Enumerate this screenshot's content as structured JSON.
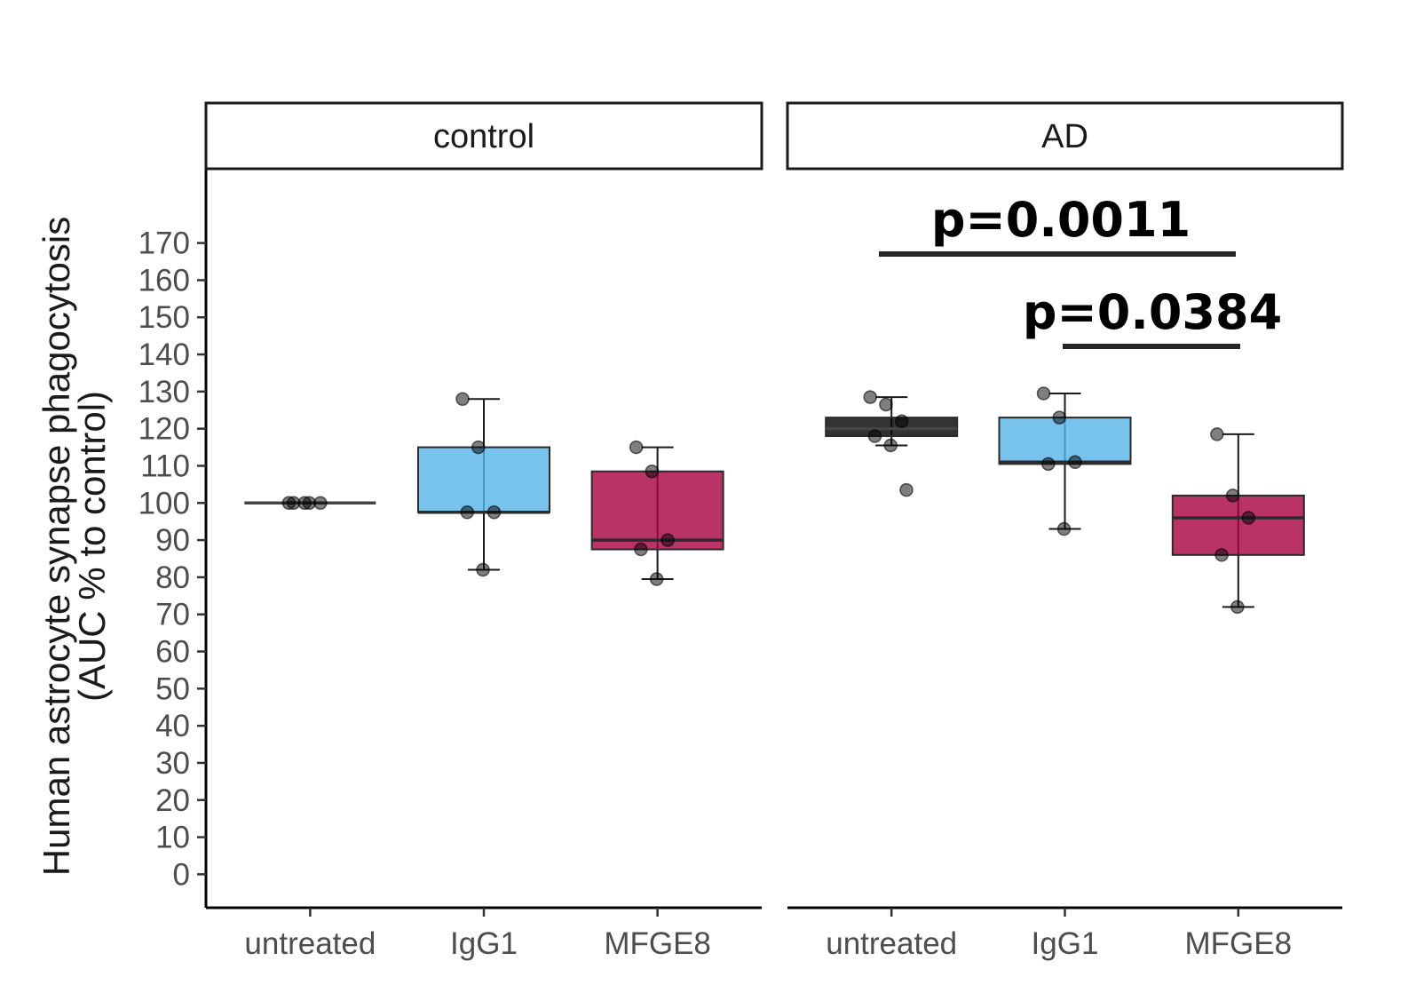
{
  "chart_data": {
    "type": "box",
    "ylabel": [
      "Human astrocyte synapse phagocytosis",
      "(AUC % to control)"
    ],
    "yticks": [
      0,
      10,
      20,
      30,
      40,
      50,
      60,
      70,
      80,
      90,
      100,
      110,
      120,
      130,
      140,
      150,
      160,
      170
    ],
    "ylim": [
      -9,
      190
    ],
    "categories": [
      "untreated",
      "IgG1",
      "MFGE8"
    ],
    "panels": [
      {
        "facet": "control",
        "boxes": [
          {
            "category": "untreated",
            "color": "#000000",
            "q1": 100,
            "median": 100,
            "q3": 100,
            "whisker_low": 100,
            "whisker_high": 100,
            "points": [
              100,
              100,
              100,
              100,
              100
            ]
          },
          {
            "category": "IgG1",
            "color": "#56B4E9",
            "q1": 97.5,
            "median": 97.5,
            "q3": 115,
            "whisker_low": 82,
            "whisker_high": 128,
            "points": [
              128,
              115,
              97.5,
              97.5,
              82
            ]
          },
          {
            "category": "MFGE8",
            "color": "#A90040",
            "q1": 87.5,
            "median": 90,
            "q3": 108.5,
            "whisker_low": 79.5,
            "whisker_high": 115,
            "points": [
              115,
              108.5,
              90,
              87.5,
              79.5
            ]
          }
        ]
      },
      {
        "facet": "AD",
        "boxes": [
          {
            "category": "untreated",
            "color": "#000000",
            "q1": 118,
            "median": 120,
            "q3": 123,
            "whisker_low": 115.5,
            "whisker_high": 128.5,
            "points": [
              128.5,
              126.5,
              122,
              118,
              115.5,
              103.5
            ]
          },
          {
            "category": "IgG1",
            "color": "#56B4E9",
            "q1": 110.5,
            "median": 111,
            "q3": 123,
            "whisker_low": 93,
            "whisker_high": 129.5,
            "points": [
              129.5,
              123,
              111,
              110.5,
              93
            ]
          },
          {
            "category": "MFGE8",
            "color": "#A90040",
            "q1": 86,
            "median": 96,
            "q3": 102,
            "whisker_low": 72,
            "whisker_high": 118.5,
            "points": [
              118.5,
              102,
              96,
              86,
              72
            ]
          }
        ]
      }
    ],
    "annotations": [
      {
        "facet": "AD",
        "from": "untreated",
        "to": "MFGE8",
        "label": "p=0.0011"
      },
      {
        "facet": "AD",
        "from": "IgG1",
        "to": "MFGE8",
        "label": "p=0.0384"
      }
    ]
  }
}
